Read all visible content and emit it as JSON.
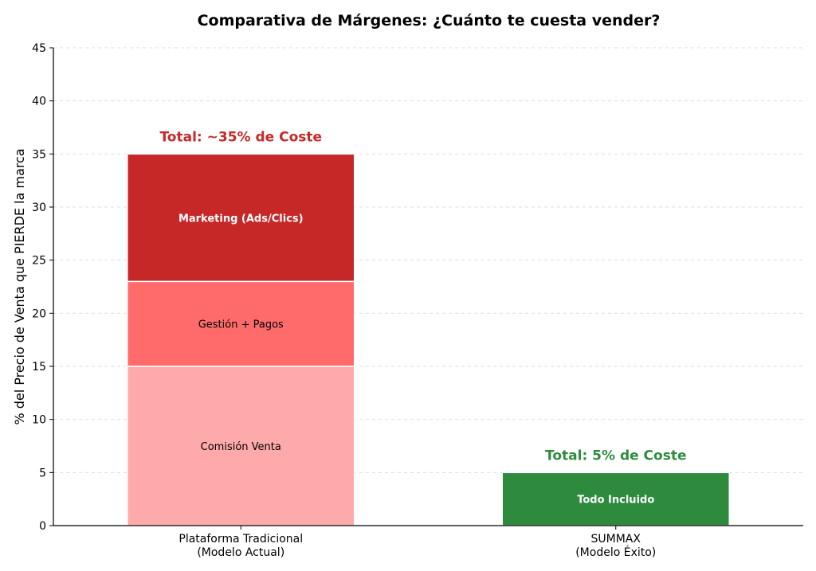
{
  "chart_data": {
    "type": "bar",
    "stacked": true,
    "title": "Comparativa de Márgenes: ¿Cuánto te cuesta vender?",
    "ylabel": "% del Precio de Venta que PIERDE la marca",
    "xlabel": "",
    "ylim": [
      0,
      45
    ],
    "yticks": [
      0,
      5,
      10,
      15,
      20,
      25,
      30,
      35,
      40,
      45
    ],
    "grid": "horizontal-dashed",
    "categories": [
      [
        "Plataforma Tradicional",
        "(Modelo Actual)"
      ],
      [
        "SUMMAX",
        "(Modelo Éxito)"
      ]
    ],
    "bars": [
      {
        "segments": [
          {
            "label": "Comisión Venta",
            "value": 15,
            "color": "#ffaaaa",
            "label_color": "#000000",
            "label_bold": false
          },
          {
            "label": "Gestión + Pagos",
            "value": 8,
            "color": "#ff6b6b",
            "label_color": "#000000",
            "label_bold": false
          },
          {
            "label": "Marketing (Ads/Clics)",
            "value": 12,
            "color": "#c62828",
            "label_color": "#ffffff",
            "label_bold": true
          }
        ],
        "total_label": "Total: ~35% de Coste",
        "total_color": "#c62828"
      },
      {
        "segments": [
          {
            "label": "Todo Incluido",
            "value": 5,
            "color": "#2e8b3e",
            "label_color": "#ffffff",
            "label_bold": true
          }
        ],
        "total_label": "Total: 5% de Coste",
        "total_color": "#2e8b3e"
      }
    ]
  }
}
